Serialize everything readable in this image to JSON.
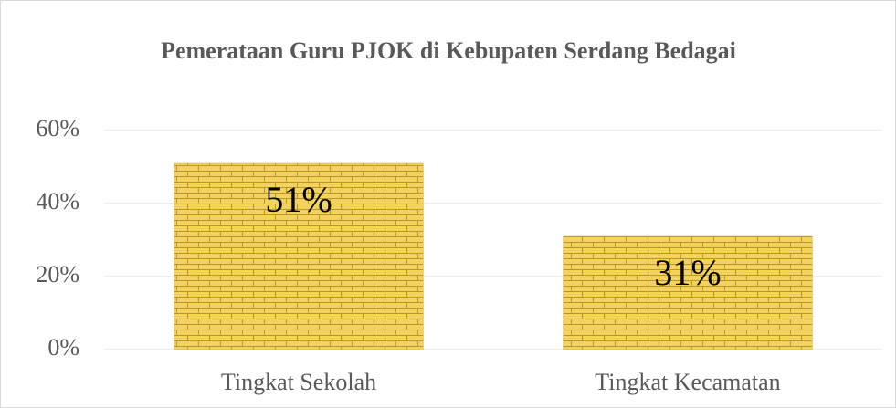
{
  "chart_data": {
    "type": "bar",
    "title": "Pemerataan Guru PJOK di Kebupaten Serdang Bedagai",
    "categories": [
      "Tingkat Sekolah",
      "Tingkat Kecamatan"
    ],
    "values": [
      51,
      31
    ],
    "value_labels": [
      "51%",
      "31%"
    ],
    "color": "#f3d35c",
    "ylim": [
      0,
      60
    ],
    "yticks": [
      {
        "value": 0,
        "label": "0%"
      },
      {
        "value": 20,
        "label": "20%"
      },
      {
        "value": 40,
        "label": "40%"
      },
      {
        "value": 60,
        "label": "60%"
      }
    ],
    "grid": true
  }
}
